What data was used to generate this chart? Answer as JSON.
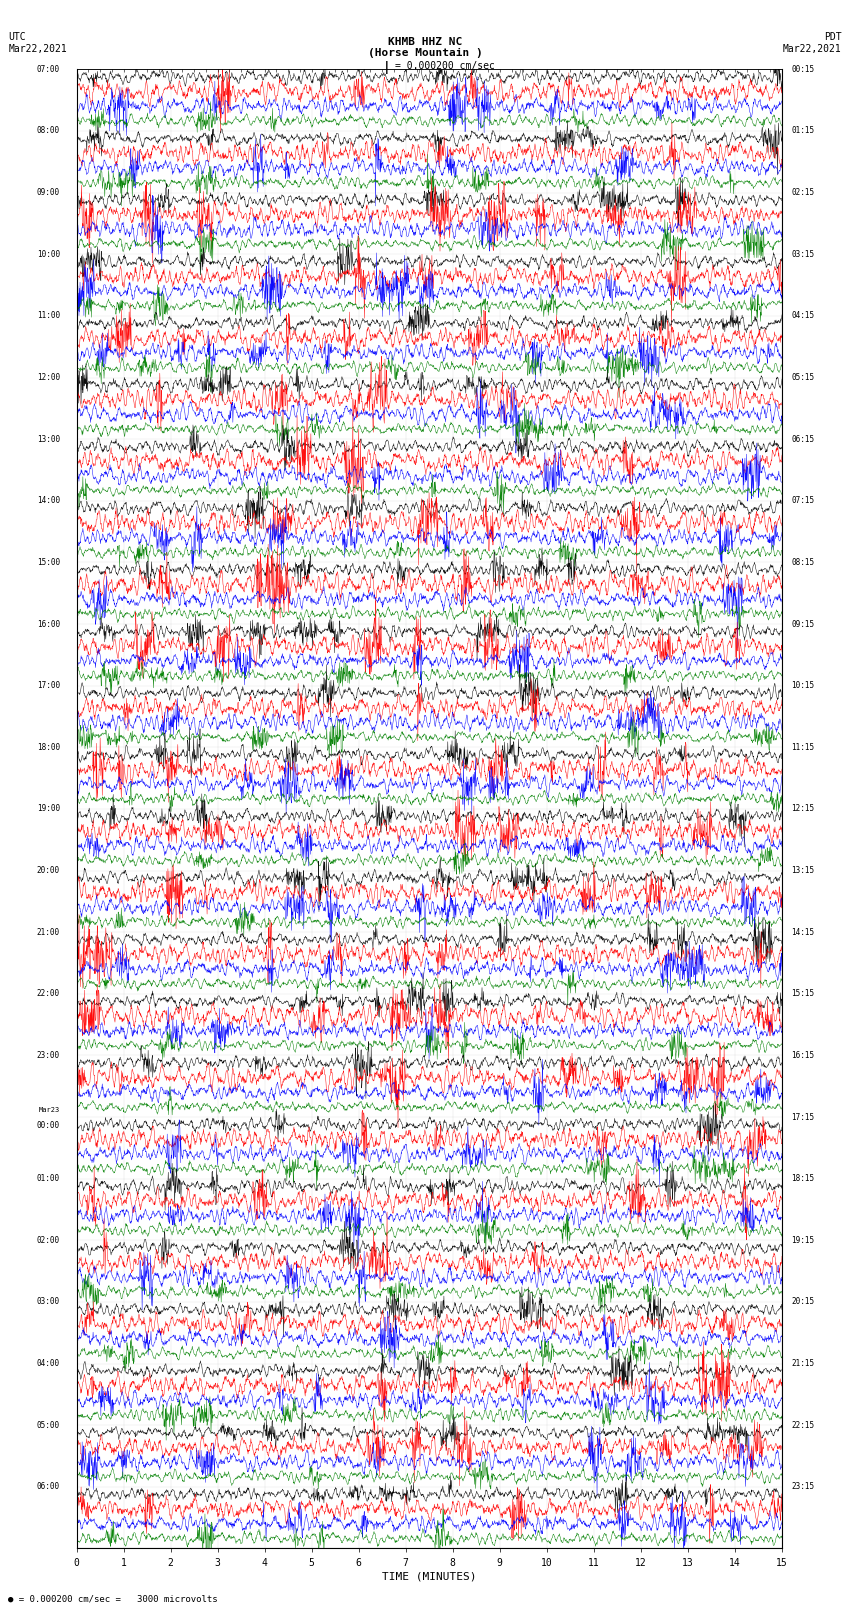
{
  "title_line1": "KHMB HHZ NC",
  "title_line2": "(Horse Mountain )",
  "scale_label": "= 0.000200 cm/sec",
  "left_label": "UTC\nMar22,2021",
  "right_label": "PDT\nMar22,2021",
  "bottom_note": "= 0.000200 cm/sec =   3000 microvolts",
  "xlabel": "TIME (MINUTES)",
  "left_times": [
    "07:00",
    "08:00",
    "09:00",
    "10:00",
    "11:00",
    "12:00",
    "13:00",
    "14:00",
    "15:00",
    "16:00",
    "17:00",
    "18:00",
    "19:00",
    "20:00",
    "21:00",
    "22:00",
    "23:00",
    "Mar23\n00:00",
    "01:00",
    "02:00",
    "03:00",
    "04:00",
    "05:00",
    "06:00"
  ],
  "right_times": [
    "00:15",
    "01:15",
    "02:15",
    "03:15",
    "04:15",
    "05:15",
    "06:15",
    "07:15",
    "08:15",
    "09:15",
    "10:15",
    "11:15",
    "12:15",
    "13:15",
    "14:15",
    "15:15",
    "16:15",
    "17:15",
    "18:15",
    "19:15",
    "20:15",
    "21:15",
    "22:15",
    "23:15"
  ],
  "n_rows": 24,
  "traces_per_row": 4,
  "colors": [
    "black",
    "red",
    "blue",
    "green"
  ],
  "bg_color": "white",
  "time_min": 0,
  "time_max": 15,
  "xticks": [
    0,
    1,
    2,
    3,
    4,
    5,
    6,
    7,
    8,
    9,
    10,
    11,
    12,
    13,
    14,
    15
  ],
  "font_family": "monospace"
}
